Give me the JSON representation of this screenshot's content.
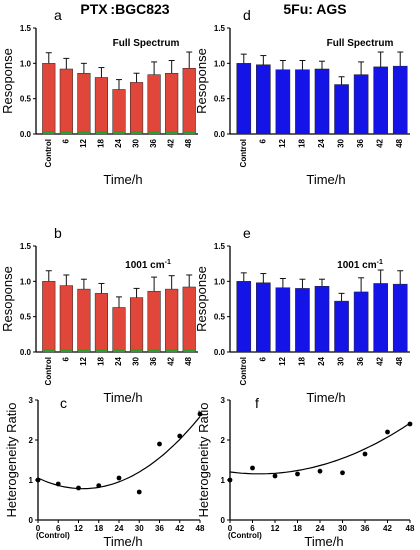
{
  "columns": [
    {
      "title": "PTX :BGC823"
    },
    {
      "title": "5Fu: AGS"
    }
  ],
  "colors": {
    "red_bar": "#e0473a",
    "red_bar_top": "#c8302b",
    "blue_bar": "#1414e6",
    "green_base": "#2aa02a"
  },
  "chart_data": [
    {
      "panel": "a",
      "type": "bar",
      "annotation": "Full Spectrum",
      "categories": [
        "Control",
        "6",
        "12",
        "18",
        "24",
        "30",
        "36",
        "42",
        "48"
      ],
      "values": [
        1.0,
        0.92,
        0.86,
        0.8,
        0.63,
        0.73,
        0.84,
        0.86,
        0.93
      ],
      "errors": [
        0.15,
        0.15,
        0.14,
        0.14,
        0.14,
        0.13,
        0.18,
        0.18,
        0.23
      ],
      "ylabel": "Resoponse",
      "xlabel": "Time/h",
      "ylim": [
        0,
        1.5
      ],
      "yticks": [
        "0.0",
        "0.5",
        "1.0",
        "1.5"
      ],
      "color": "#e0473a"
    },
    {
      "panel": "d",
      "type": "bar",
      "annotation": "Full Spectrum",
      "categories": [
        "Control",
        "6",
        "12",
        "18",
        "24",
        "30",
        "36",
        "42",
        "48"
      ],
      "values": [
        1.0,
        0.98,
        0.91,
        0.91,
        0.92,
        0.7,
        0.84,
        0.95,
        0.96
      ],
      "errors": [
        0.13,
        0.13,
        0.13,
        0.13,
        0.11,
        0.11,
        0.18,
        0.21,
        0.2
      ],
      "ylabel": "Resoponse",
      "xlabel": "Time/h",
      "ylim": [
        0,
        1.5
      ],
      "yticks": [
        "0.0",
        "0.5",
        "1.0",
        "1.5"
      ],
      "color": "#1414e6"
    },
    {
      "panel": "b",
      "type": "bar",
      "annotation": "1001 cm",
      "annotation_sup": "-1",
      "categories": [
        "Control",
        "6",
        "12",
        "18",
        "24",
        "30",
        "36",
        "42",
        "48"
      ],
      "values": [
        1.0,
        0.94,
        0.89,
        0.83,
        0.63,
        0.77,
        0.86,
        0.89,
        0.92
      ],
      "errors": [
        0.15,
        0.15,
        0.14,
        0.14,
        0.15,
        0.13,
        0.2,
        0.19,
        0.17
      ],
      "ylabel": "Resoponse",
      "xlabel": "Time/h",
      "ylim": [
        0,
        1.5
      ],
      "yticks": [
        "0.0",
        "0.5",
        "1.0",
        "1.5"
      ],
      "color": "#e0473a"
    },
    {
      "panel": "e",
      "type": "bar",
      "annotation": "1001 cm",
      "annotation_sup": "-1",
      "categories": [
        "Control",
        "6",
        "12",
        "18",
        "24",
        "30",
        "36",
        "42",
        "48"
      ],
      "values": [
        1.0,
        0.98,
        0.91,
        0.9,
        0.93,
        0.72,
        0.85,
        0.97,
        0.96
      ],
      "errors": [
        0.12,
        0.13,
        0.13,
        0.13,
        0.1,
        0.11,
        0.2,
        0.19,
        0.19
      ],
      "ylabel": "Resoponse",
      "xlabel": "Time/h",
      "ylim": [
        0,
        1.5
      ],
      "yticks": [
        "0.0",
        "0.5",
        "1.0",
        "1.5"
      ],
      "color": "#1414e6"
    },
    {
      "panel": "c",
      "type": "scatter",
      "points": [
        [
          0,
          1.0
        ],
        [
          6,
          0.9
        ],
        [
          12,
          0.8
        ],
        [
          18,
          0.86
        ],
        [
          24,
          1.05
        ],
        [
          30,
          0.7
        ],
        [
          36,
          1.9
        ],
        [
          42,
          2.1
        ],
        [
          48,
          2.65
        ]
      ],
      "fit": [
        1.05,
        -0.04,
        0.0015
      ],
      "ylabel": "Heterogeneity Ratio",
      "xlabel": "Time/h",
      "xlim": [
        0,
        48
      ],
      "ylim": [
        0,
        3
      ],
      "xticks": [
        "0",
        "6",
        "12",
        "18",
        "24",
        "30",
        "36",
        "42",
        "48"
      ],
      "yticks": [
        "0",
        "1",
        "2",
        "3"
      ],
      "x0_note": "(Control)"
    },
    {
      "panel": "f",
      "type": "scatter",
      "points": [
        [
          0,
          1.0
        ],
        [
          6,
          1.3
        ],
        [
          12,
          1.1
        ],
        [
          18,
          1.15
        ],
        [
          24,
          1.22
        ],
        [
          30,
          1.18
        ],
        [
          36,
          1.65
        ],
        [
          42,
          2.2
        ],
        [
          48,
          2.4
        ]
      ],
      "fit": [
        1.2,
        -0.012,
        0.00078
      ],
      "ylabel": "Heterogeneity Ratio",
      "xlabel": "Time/h",
      "xlim": [
        0,
        48
      ],
      "ylim": [
        0,
        3
      ],
      "xticks": [
        "0",
        "6",
        "12",
        "18",
        "24",
        "30",
        "36",
        "42",
        "48"
      ],
      "yticks": [
        "0",
        "1",
        "2",
        "3"
      ],
      "x0_note": "(Control)"
    }
  ]
}
